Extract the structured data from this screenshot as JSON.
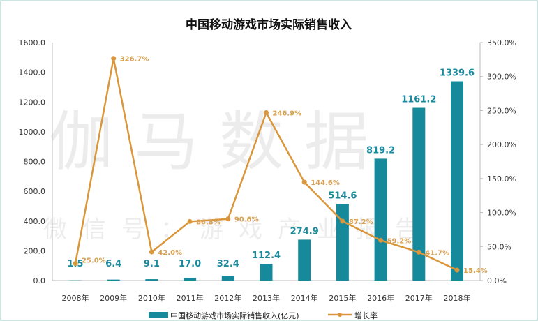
{
  "watermark": {
    "main": "伽马数据",
    "sub": "微信号：游戏产业报告"
  },
  "chart_data": {
    "type": "bar+line",
    "title": "中国移动游戏市场实际销售收入",
    "categories": [
      "2008年",
      "2009年",
      "2010年",
      "2011年",
      "2012年",
      "2013年",
      "2014年",
      "2015年",
      "2016年",
      "2017年",
      "2018年"
    ],
    "series": [
      {
        "name": "中国移动游戏市场实际销售收入(亿元)",
        "type": "bar",
        "axis": "left",
        "color": "#168a9b",
        "values": [
          1.5,
          6.4,
          9.1,
          17.0,
          32.4,
          112.4,
          274.9,
          514.6,
          819.2,
          1161.2,
          1339.6
        ],
        "labels": [
          "1.5",
          "6.4",
          "9.1",
          "17.0",
          "32.4",
          "112.4",
          "274.9",
          "514.6",
          "819.2",
          "1161.2",
          "1339.6"
        ]
      },
      {
        "name": "增长率",
        "type": "line",
        "axis": "right",
        "color": "#d9963a",
        "values": [
          25.0,
          326.7,
          42.0,
          86.8,
          90.6,
          246.9,
          144.6,
          87.2,
          59.2,
          41.7,
          15.4
        ],
        "labels": [
          "25.0%",
          "326.7%",
          "42.0%",
          "86.8%",
          "90.6%",
          "246.9%",
          "144.6%",
          "87.2%",
          "59.2%",
          "41.7%",
          "15.4%"
        ]
      }
    ],
    "y_left": {
      "range": [
        0,
        1600
      ],
      "ticks": [
        "0.0",
        "200.0",
        "400.0",
        "600.0",
        "800.0",
        "1000.0",
        "1200.0",
        "1400.0",
        "1600.0"
      ]
    },
    "y_right": {
      "range": [
        0,
        350
      ],
      "ticks": [
        "0.0%",
        "50.0%",
        "100.0%",
        "150.0%",
        "200.0%",
        "250.0%",
        "300.0%",
        "350.0%"
      ]
    },
    "grid": false,
    "legend": "bottom"
  }
}
